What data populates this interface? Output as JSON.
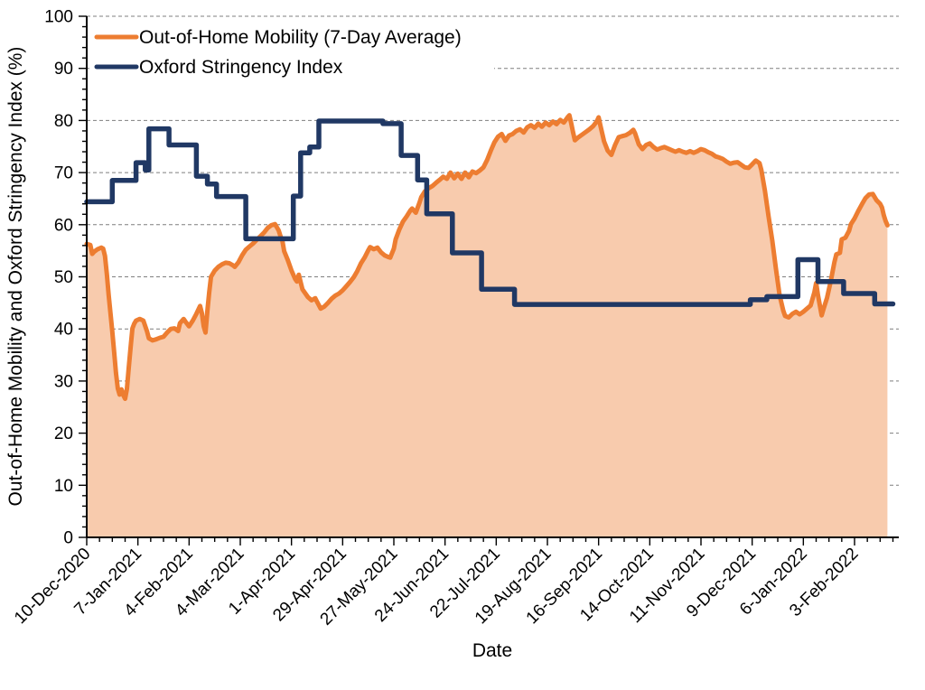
{
  "chart_data": {
    "type": "area",
    "title": "",
    "xlabel": "Date",
    "ylabel": "Out-of-Home Mobility and Oxford Stringency Index (%)",
    "x_unit": "days since 10-Dec-2020",
    "x_tick_interval_days": 28,
    "x_minor_tick_days": 7,
    "x_axis_end_day": 444,
    "x_tick_labels": [
      "10-Dec-2020",
      "7-Jan-2021",
      "4-Feb-2021",
      "4-Mar-2021",
      "1-Apr-2021",
      "29-Apr-2021",
      "27-May-2021",
      "24-Jun-2021",
      "22-Jul-2021",
      "19-Aug-2021",
      "16-Sep-2021",
      "14-Oct-2021",
      "11-Nov-2021",
      "9-Dec-2021",
      "6-Jan-2022",
      "3-Feb-2022"
    ],
    "ylim": [
      0,
      100
    ],
    "y_major_step": 10,
    "y_minor_step": 2,
    "grid": "horizontal dashed every 10, behind area fill",
    "legend_position": "top-left inside plot",
    "colors": {
      "mobility_line": "#ED7D31",
      "mobility_fill": "#F8CBAD",
      "stringency_line": "#203864",
      "gridline": "#7F7F7F",
      "axis": "#000000",
      "background": "#FFFFFF"
    },
    "series": [
      {
        "name": "Out-of-Home Mobility (7-Day Average)",
        "style": "line-with-area-fill",
        "points": [
          [
            0,
            56.3
          ],
          [
            2,
            56.1
          ],
          [
            3,
            54.4
          ],
          [
            4,
            54.8
          ],
          [
            6,
            55.3
          ],
          [
            8,
            55.6
          ],
          [
            9,
            55.4
          ],
          [
            10,
            54.0
          ],
          [
            11,
            50.5
          ],
          [
            12,
            46.5
          ],
          [
            13,
            43.0
          ],
          [
            14,
            39.5
          ],
          [
            15,
            35.5
          ],
          [
            16,
            31.5
          ],
          [
            17,
            28.6
          ],
          [
            18,
            27.4
          ],
          [
            19,
            28.4
          ],
          [
            20,
            27.3
          ],
          [
            21,
            26.6
          ],
          [
            22,
            28.5
          ],
          [
            23,
            32.5
          ],
          [
            24,
            36.5
          ],
          [
            25,
            40.1
          ],
          [
            26,
            41.0
          ],
          [
            27,
            41.6
          ],
          [
            29,
            41.9
          ],
          [
            31,
            41.6
          ],
          [
            33,
            39.5
          ],
          [
            34,
            38.2
          ],
          [
            36,
            37.8
          ],
          [
            38,
            38.0
          ],
          [
            40,
            38.3
          ],
          [
            42,
            38.5
          ],
          [
            44,
            39.3
          ],
          [
            46,
            40.0
          ],
          [
            48,
            40.1
          ],
          [
            50,
            39.6
          ],
          [
            51,
            41.1
          ],
          [
            53,
            41.9
          ],
          [
            54,
            41.4
          ],
          [
            56,
            40.5
          ],
          [
            58,
            41.6
          ],
          [
            60,
            42.9
          ],
          [
            62,
            44.4
          ],
          [
            63,
            43.0
          ],
          [
            64,
            40.5
          ],
          [
            65,
            39.3
          ],
          [
            66,
            43.5
          ],
          [
            67,
            47.0
          ],
          [
            68,
            50.0
          ],
          [
            70,
            51.2
          ],
          [
            72,
            51.9
          ],
          [
            74,
            52.4
          ],
          [
            76,
            52.7
          ],
          [
            78,
            52.6
          ],
          [
            80,
            52.2
          ],
          [
            81,
            51.9
          ],
          [
            83,
            52.8
          ],
          [
            85,
            54.1
          ],
          [
            87,
            55.2
          ],
          [
            89,
            55.8
          ],
          [
            91,
            56.4
          ],
          [
            93,
            57.1
          ],
          [
            95,
            57.8
          ],
          [
            97,
            58.5
          ],
          [
            99,
            59.4
          ],
          [
            101,
            59.9
          ],
          [
            103,
            60.1
          ],
          [
            105,
            58.9
          ],
          [
            106,
            57.8
          ],
          [
            107,
            57.0
          ],
          [
            108,
            54.9
          ],
          [
            110,
            53.2
          ],
          [
            112,
            51.2
          ],
          [
            114,
            49.6
          ],
          [
            115,
            49.1
          ],
          [
            116,
            50.4
          ],
          [
            117,
            49.0
          ],
          [
            118,
            47.6
          ],
          [
            119,
            47.1
          ],
          [
            121,
            46.1
          ],
          [
            123,
            45.5
          ],
          [
            125,
            45.9
          ],
          [
            126,
            45.2
          ],
          [
            128,
            43.9
          ],
          [
            130,
            44.3
          ],
          [
            132,
            45.0
          ],
          [
            134,
            45.8
          ],
          [
            136,
            46.4
          ],
          [
            138,
            46.8
          ],
          [
            140,
            47.4
          ],
          [
            142,
            48.2
          ],
          [
            144,
            49.0
          ],
          [
            146,
            49.9
          ],
          [
            148,
            51.1
          ],
          [
            150,
            52.6
          ],
          [
            152,
            53.7
          ],
          [
            154,
            55.1
          ],
          [
            155,
            55.7
          ],
          [
            157,
            55.3
          ],
          [
            159,
            55.6
          ],
          [
            161,
            54.7
          ],
          [
            163,
            54.1
          ],
          [
            165,
            53.8
          ],
          [
            166,
            53.7
          ],
          [
            168,
            55.4
          ],
          [
            169,
            57.2
          ],
          [
            171,
            59.1
          ],
          [
            173,
            60.6
          ],
          [
            175,
            61.6
          ],
          [
            177,
            62.7
          ],
          [
            178,
            63.1
          ],
          [
            180,
            62.3
          ],
          [
            182,
            64.2
          ],
          [
            183,
            65.3
          ],
          [
            185,
            66.4
          ],
          [
            187,
            67.0
          ],
          [
            189,
            67.4
          ],
          [
            191,
            68.0
          ],
          [
            193,
            68.6
          ],
          [
            195,
            69.2
          ],
          [
            197,
            68.8
          ],
          [
            199,
            70.0
          ],
          [
            201,
            68.9
          ],
          [
            203,
            69.8
          ],
          [
            205,
            68.8
          ],
          [
            207,
            70.0
          ],
          [
            209,
            69.1
          ],
          [
            211,
            70.2
          ],
          [
            213,
            69.9
          ],
          [
            215,
            70.4
          ],
          [
            217,
            71.0
          ],
          [
            219,
            72.4
          ],
          [
            221,
            74.2
          ],
          [
            223,
            75.8
          ],
          [
            225,
            76.9
          ],
          [
            227,
            77.4
          ],
          [
            229,
            76.1
          ],
          [
            231,
            77.1
          ],
          [
            233,
            77.4
          ],
          [
            235,
            78.0
          ],
          [
            237,
            78.3
          ],
          [
            239,
            77.7
          ],
          [
            241,
            78.7
          ],
          [
            243,
            79.1
          ],
          [
            245,
            78.6
          ],
          [
            247,
            79.4
          ],
          [
            249,
            78.8
          ],
          [
            251,
            79.6
          ],
          [
            253,
            79.1
          ],
          [
            255,
            79.8
          ],
          [
            257,
            79.3
          ],
          [
            259,
            80.1
          ],
          [
            261,
            79.6
          ],
          [
            263,
            80.6
          ],
          [
            264,
            81.0
          ],
          [
            265,
            79.5
          ],
          [
            266,
            77.8
          ],
          [
            267,
            76.2
          ],
          [
            269,
            76.8
          ],
          [
            271,
            77.3
          ],
          [
            273,
            77.8
          ],
          [
            275,
            78.3
          ],
          [
            277,
            78.9
          ],
          [
            279,
            79.8
          ],
          [
            280,
            80.6
          ],
          [
            281,
            79.0
          ],
          [
            283,
            76.0
          ],
          [
            285,
            74.2
          ],
          [
            287,
            73.4
          ],
          [
            289,
            75.3
          ],
          [
            291,
            76.8
          ],
          [
            293,
            77.0
          ],
          [
            295,
            77.2
          ],
          [
            297,
            77.6
          ],
          [
            299,
            78.2
          ],
          [
            300,
            77.5
          ],
          [
            302,
            75.4
          ],
          [
            304,
            74.5
          ],
          [
            306,
            75.3
          ],
          [
            308,
            75.6
          ],
          [
            310,
            74.9
          ],
          [
            312,
            74.4
          ],
          [
            314,
            74.7
          ],
          [
            316,
            74.9
          ],
          [
            318,
            74.6
          ],
          [
            320,
            74.3
          ],
          [
            322,
            74.0
          ],
          [
            324,
            74.3
          ],
          [
            326,
            74.0
          ],
          [
            328,
            73.8
          ],
          [
            330,
            74.1
          ],
          [
            332,
            73.8
          ],
          [
            334,
            74.1
          ],
          [
            336,
            74.5
          ],
          [
            338,
            74.3
          ],
          [
            340,
            73.9
          ],
          [
            342,
            73.6
          ],
          [
            344,
            73.1
          ],
          [
            346,
            72.9
          ],
          [
            348,
            72.6
          ],
          [
            350,
            72.1
          ],
          [
            352,
            71.7
          ],
          [
            354,
            71.9
          ],
          [
            356,
            72.0
          ],
          [
            358,
            71.5
          ],
          [
            360,
            71.0
          ],
          [
            362,
            70.9
          ],
          [
            364,
            71.6
          ],
          [
            366,
            72.3
          ],
          [
            368,
            71.8
          ],
          [
            369,
            70.5
          ],
          [
            371,
            66.5
          ],
          [
            373,
            61.5
          ],
          [
            375,
            57.0
          ],
          [
            377,
            51.5
          ],
          [
            379,
            46.5
          ],
          [
            381,
            43.5
          ],
          [
            382,
            42.5
          ],
          [
            384,
            42.2
          ],
          [
            386,
            42.9
          ],
          [
            388,
            43.3
          ],
          [
            390,
            42.8
          ],
          [
            392,
            43.3
          ],
          [
            394,
            43.9
          ],
          [
            396,
            44.5
          ],
          [
            398,
            47.0
          ],
          [
            399,
            48.8
          ],
          [
            400,
            46.5
          ],
          [
            402,
            42.6
          ],
          [
            403,
            43.8
          ],
          [
            405,
            46.0
          ],
          [
            407,
            49.2
          ],
          [
            409,
            52.8
          ],
          [
            410,
            54.3
          ],
          [
            412,
            54.6
          ],
          [
            413,
            57.2
          ],
          [
            415,
            57.5
          ],
          [
            417,
            58.8
          ],
          [
            418,
            60.1
          ],
          [
            420,
            61.2
          ],
          [
            422,
            62.6
          ],
          [
            424,
            63.9
          ],
          [
            426,
            65.1
          ],
          [
            428,
            65.8
          ],
          [
            430,
            65.9
          ],
          [
            432,
            64.7
          ],
          [
            434,
            64.0
          ],
          [
            435,
            63.3
          ],
          [
            436,
            61.8
          ],
          [
            437,
            60.7
          ],
          [
            438,
            59.9
          ]
        ]
      },
      {
        "name": "Oxford Stringency Index",
        "style": "step-line",
        "points": [
          [
            0,
            64.4
          ],
          [
            14,
            68.5
          ],
          [
            27,
            71.9
          ],
          [
            32,
            70.5
          ],
          [
            34,
            78.4
          ],
          [
            45,
            75.3
          ],
          [
            60,
            69.3
          ],
          [
            66,
            67.8
          ],
          [
            71,
            65.4
          ],
          [
            87,
            57.3
          ],
          [
            113,
            65.5
          ],
          [
            117,
            73.8
          ],
          [
            122,
            74.9
          ],
          [
            127,
            79.9
          ],
          [
            162,
            79.4
          ],
          [
            172,
            73.3
          ],
          [
            181,
            68.6
          ],
          [
            186,
            62.1
          ],
          [
            200,
            54.6
          ],
          [
            216,
            47.6
          ],
          [
            234,
            44.7
          ],
          [
            363,
            45.6
          ],
          [
            372,
            46.2
          ],
          [
            389,
            53.3
          ],
          [
            400,
            49.1
          ],
          [
            414,
            46.8
          ],
          [
            431,
            44.8
          ],
          [
            441,
            44.8
          ]
        ]
      }
    ]
  }
}
